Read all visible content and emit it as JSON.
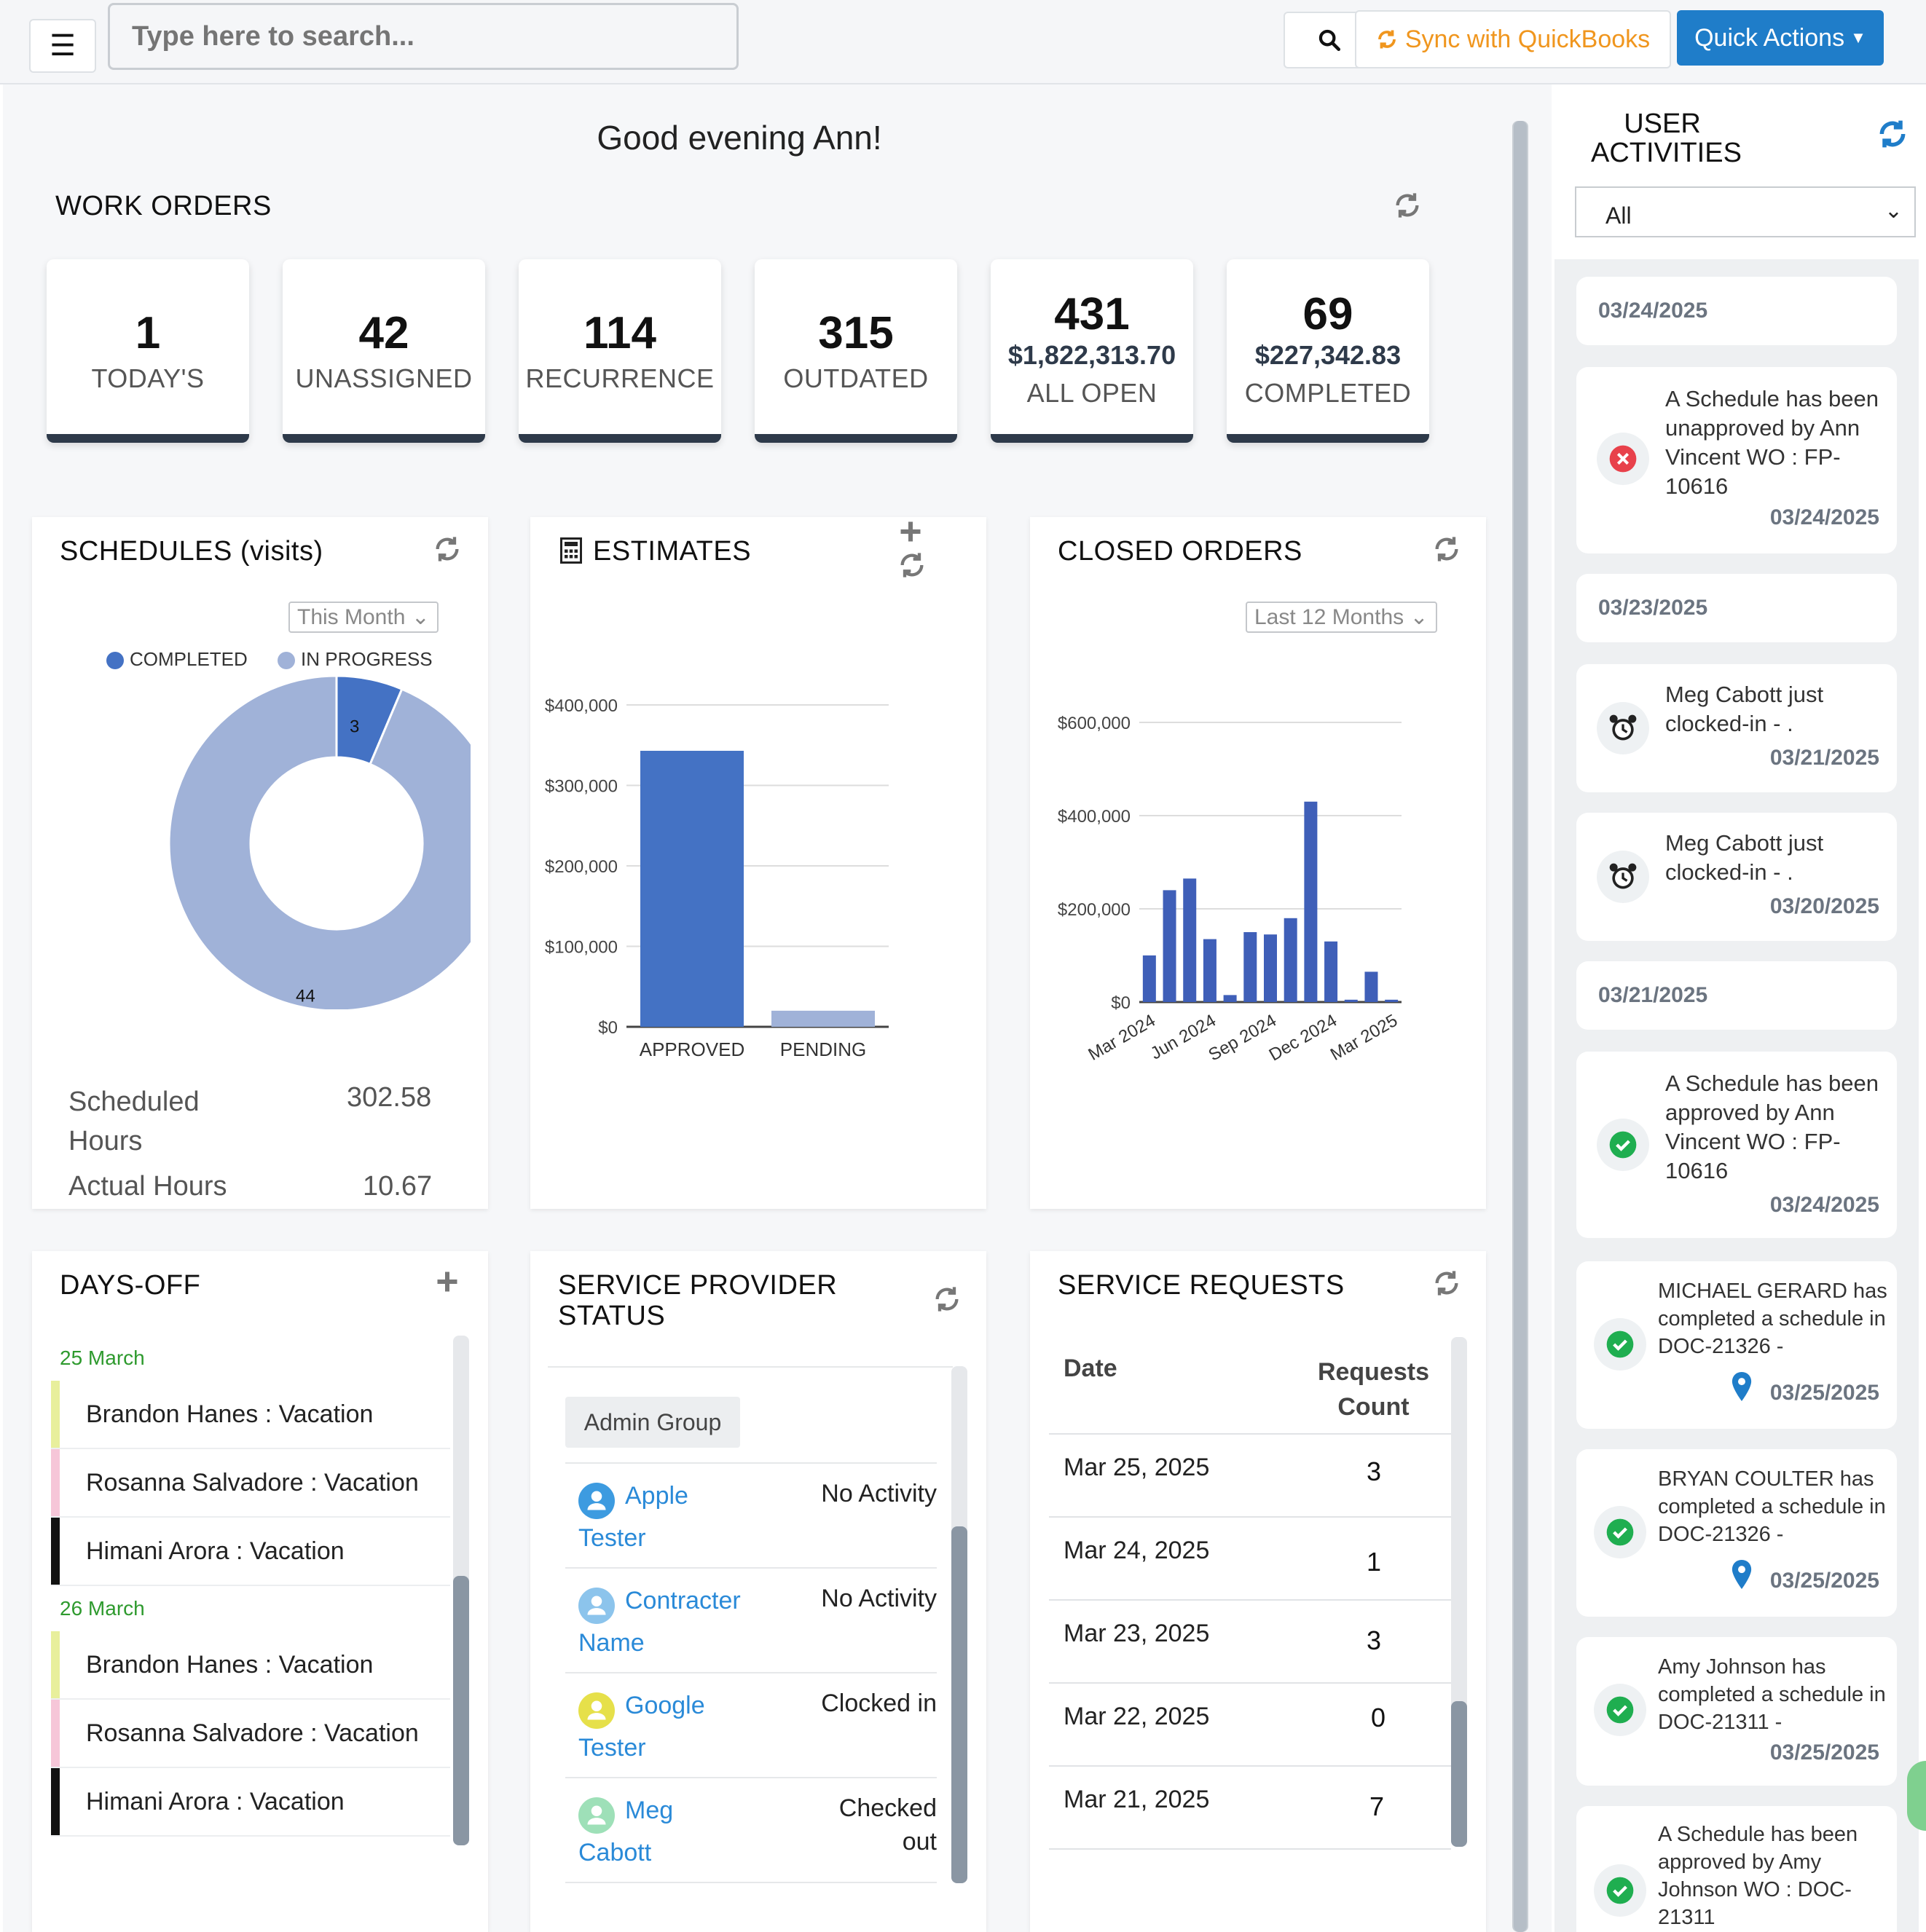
{
  "search": {
    "placeholder": "Type here to search..."
  },
  "toolbar": {
    "sync_label": "Sync with QuickBooks",
    "quick_actions_label": "Quick Actions"
  },
  "greeting": "Good evening Ann!",
  "work_orders": {
    "title": "WORK ORDERS",
    "cards": [
      {
        "value": "1",
        "label": "TODAY'S"
      },
      {
        "value": "42",
        "label": "UNASSIGNED"
      },
      {
        "value": "114",
        "label": "RECURRENCE"
      },
      {
        "value": "315",
        "label": "OUTDATED"
      },
      {
        "value": "431",
        "amount": "$1,822,313.70",
        "label": "ALL OPEN"
      },
      {
        "value": "69",
        "amount": "$227,342.83",
        "label": "COMPLETED"
      }
    ]
  },
  "schedules": {
    "title": "SCHEDULES (visits)",
    "period": "This Month",
    "legend": [
      "COMPLETED",
      "IN PROGRESS"
    ],
    "completed": 3,
    "in_progress": 44,
    "scheduled_hours_label": "Scheduled Hours",
    "scheduled_hours": "302.58",
    "actual_hours_label": "Actual Hours",
    "actual_hours": "10.67"
  },
  "estimates": {
    "title": "ESTIMATES"
  },
  "closed_orders": {
    "title": "CLOSED ORDERS",
    "period": "Last 12 Months"
  },
  "chart_data": [
    {
      "type": "bar",
      "title": "ESTIMATES",
      "categories": [
        "APPROVED",
        "PENDING"
      ],
      "values": [
        343000,
        20000
      ],
      "colors": [
        "#4472c4",
        "#a0b2d8"
      ],
      "ylim": [
        0,
        400000
      ],
      "yticks": [
        "$0",
        "$100,000",
        "$200,000",
        "$300,000",
        "$400,000"
      ]
    },
    {
      "type": "bar",
      "title": "CLOSED ORDERS",
      "categories": [
        "Mar 2024",
        "Apr 2024",
        "May 2024",
        "Jun 2024",
        "Jul 2024",
        "Aug 2024",
        "Sep 2024",
        "Oct 2024",
        "Nov 2024",
        "Dec 2024",
        "Jan 2025",
        "Feb 2025",
        "Mar 2025"
      ],
      "values": [
        100000,
        240000,
        265000,
        135000,
        15000,
        150000,
        145000,
        180000,
        430000,
        130000,
        5000,
        65000,
        5000
      ],
      "xticks": [
        "Mar 2024",
        "Jun 2024",
        "Sep 2024",
        "Dec 2024",
        "Mar 2025"
      ],
      "ylim": [
        0,
        600000
      ],
      "yticks": [
        "$0",
        "$200,000",
        "$400,000",
        "$600,000"
      ]
    },
    {
      "type": "pie",
      "title": "SCHEDULES (visits)",
      "categories": [
        "COMPLETED",
        "IN PROGRESS"
      ],
      "values": [
        3,
        44
      ],
      "colors": [
        "#4472c4",
        "#a0b2d8"
      ]
    }
  ],
  "days_off": {
    "title": "DAYS-OFF",
    "groups": [
      {
        "date": "25 March",
        "items": [
          {
            "text": "Brandon Hanes : Vacation",
            "color": "#e8ef9c"
          },
          {
            "text": "Rosanna Salvadore : Vacation",
            "color": "#f6c6d8"
          },
          {
            "text": "Himani Arora : Vacation",
            "color": "#111111"
          }
        ]
      },
      {
        "date": "26 March",
        "items": [
          {
            "text": "Brandon Hanes : Vacation",
            "color": "#e8ef9c"
          },
          {
            "text": "Rosanna Salvadore : Vacation",
            "color": "#f6c6d8"
          },
          {
            "text": "Himani Arora : Vacation",
            "color": "#111111"
          }
        ]
      }
    ]
  },
  "service_provider": {
    "title_line1": "SERVICE PROVIDER",
    "title_line2": "STATUS",
    "group": "Admin Group",
    "rows": [
      {
        "first": "Apple",
        "last": "Tester",
        "status1": "No Activity",
        "status2": "",
        "avatar": "#3d9be0"
      },
      {
        "first": "Contracter",
        "last": "Name",
        "status1": "No Activity",
        "status2": "",
        "avatar": "#8cc4ec"
      },
      {
        "first": "Google",
        "last": "Tester",
        "status1": "Clocked in",
        "status2": "",
        "avatar": "#e6e04a"
      },
      {
        "first": "Meg",
        "last": "Cabott",
        "status1": "Checked",
        "status2": "out",
        "avatar": "#9ee0b8"
      }
    ]
  },
  "service_requests": {
    "title": "SERVICE REQUESTS",
    "col_date": "Date",
    "col_count_1": "Requests",
    "col_count_2": "Count",
    "rows": [
      {
        "date": "Mar 25, 2025",
        "count": "3"
      },
      {
        "date": "Mar 24, 2025",
        "count": "1"
      },
      {
        "date": "Mar 23, 2025",
        "count": "3"
      },
      {
        "date": "Mar 22, 2025",
        "count": "0"
      },
      {
        "date": "Mar 21, 2025",
        "count": "7"
      }
    ]
  },
  "user_activities": {
    "title_line1": "USER",
    "title_line2": "ACTIVITIES",
    "filter": "All",
    "items": [
      {
        "kind": "date",
        "date": "03/24/2025"
      },
      {
        "kind": "activity",
        "icon": "x-circle-icon",
        "text": "A Schedule has been unapproved by Ann Vincent WO : FP-10616",
        "time": "03/24/2025"
      },
      {
        "kind": "date",
        "date": "03/23/2025"
      },
      {
        "kind": "activity",
        "icon": "alarm-clock-icon",
        "text": "Meg Cabott just clocked-in - .",
        "time": "03/21/2025"
      },
      {
        "kind": "activity",
        "icon": "alarm-clock-icon",
        "text": "Meg Cabott just clocked-in - .",
        "time": "03/20/2025"
      },
      {
        "kind": "date",
        "date": "03/21/2025"
      },
      {
        "kind": "activity",
        "icon": "check-circle-icon",
        "text": "A Schedule has been approved by Ann Vincent WO : FP-10616",
        "time": "03/24/2025"
      },
      {
        "kind": "activity",
        "icon": "check-circle-icon",
        "pin": true,
        "text": "MICHAEL GERARD has completed a schedule in DOC-21326 -",
        "time": "03/25/2025"
      },
      {
        "kind": "activity",
        "icon": "check-circle-icon",
        "pin": true,
        "text": "BRYAN COULTER has completed a schedule in DOC-21326 -",
        "time": "03/25/2025"
      },
      {
        "kind": "activity",
        "icon": "check-circle-icon",
        "text": "Amy Johnson has completed a schedule in DOC-21311 -",
        "time": "03/25/2025"
      },
      {
        "kind": "activity",
        "icon": "check-circle-icon",
        "text": "A Schedule has been approved by Amy Johnson WO : DOC-21311",
        "time": ""
      }
    ]
  }
}
